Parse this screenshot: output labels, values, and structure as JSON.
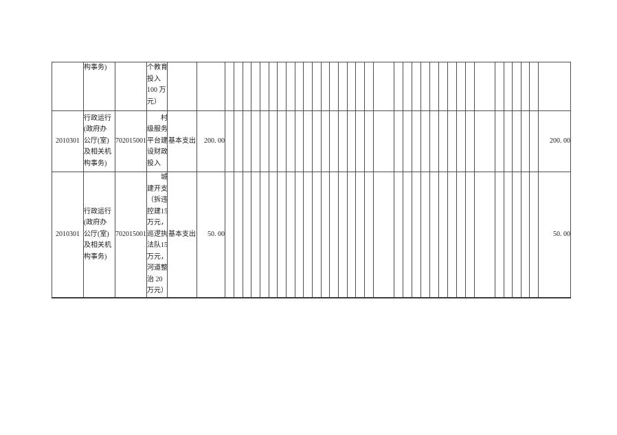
{
  "page": {
    "background": "#ffffff",
    "border_color": "#4d4d4d"
  },
  "table": {
    "rows": [
      {
        "code": "",
        "org": "构事务)",
        "project_code": "",
        "project_desc": "个教育\n投入\n100 万\n元）",
        "expense_type": "",
        "amount": "",
        "total": ""
      },
      {
        "code": "2010301",
        "org": "行政运行\n(政府办\n公厅(室)\n及相关机\n构事务)",
        "project_code": "702015001",
        "project_desc": "　　村\n级服务\n平台建\n设财政\n投入",
        "expense_type": "基本支出",
        "amount": "200. 00",
        "total": "200. 00"
      },
      {
        "code": "2010301",
        "org": "行政运行\n(政府办\n公厅(室)\n及相关机\n构事务)",
        "project_code": "702015001",
        "project_desc": "　　城\n建开支\n（拆违\n控建15\n万元，\n巡逻执\n法队15\n万元，\n河道整\n治 20\n万元）",
        "expense_type": "基本支出",
        "amount": "50. 00",
        "total": "50. 00"
      }
    ]
  }
}
